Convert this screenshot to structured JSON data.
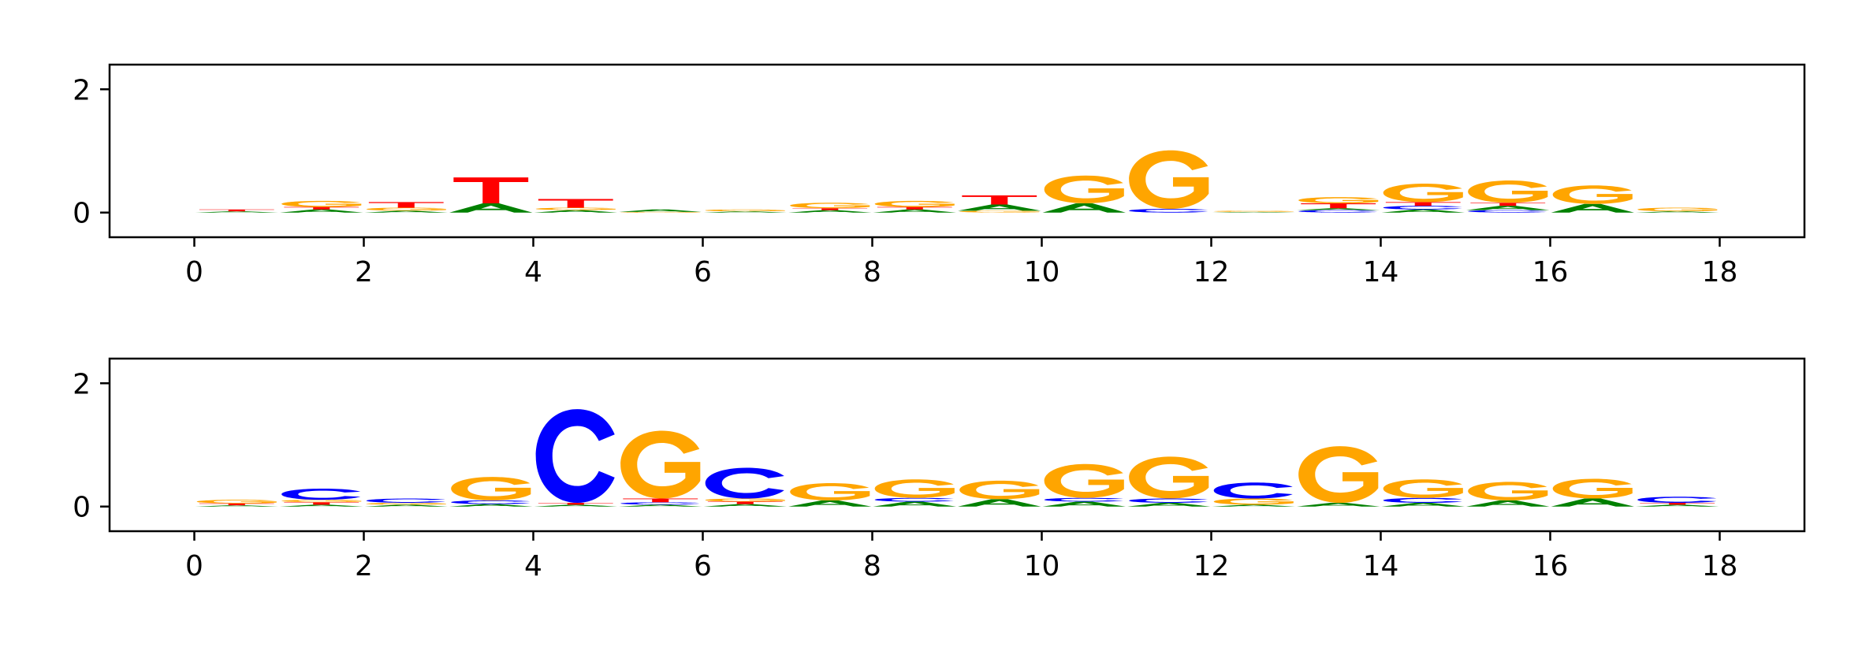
{
  "colors": {
    "A": "#008000",
    "C": "#0000ff",
    "G": "#ffa500",
    "T": "#ff0000",
    "axis": "#000000"
  },
  "chart_data": [
    {
      "type": "sequence-logo",
      "title": "",
      "xlabel": "",
      "ylabel": "",
      "xlim": [
        -1,
        19
      ],
      "ylim": [
        -0.4,
        2.4
      ],
      "xticks": [
        0,
        2,
        4,
        6,
        8,
        10,
        12,
        14,
        16,
        18
      ],
      "yticks": [
        0,
        2
      ],
      "columns": [
        {
          "pos": 0,
          "letters": [
            [
              "A",
              0.02
            ],
            [
              "T",
              0.03
            ]
          ]
        },
        {
          "pos": 1,
          "letters": [
            [
              "A",
              0.05
            ],
            [
              "T",
              0.04
            ],
            [
              "G",
              0.1
            ]
          ]
        },
        {
          "pos": 2,
          "letters": [
            [
              "A",
              0.03
            ],
            [
              "G",
              0.05
            ],
            [
              "T",
              0.09
            ]
          ]
        },
        {
          "pos": 3,
          "letters": [
            [
              "A",
              0.15
            ],
            [
              "T",
              0.42
            ]
          ]
        },
        {
          "pos": 4,
          "letters": [
            [
              "A",
              0.04
            ],
            [
              "G",
              0.04
            ],
            [
              "T",
              0.14
            ]
          ]
        },
        {
          "pos": 5,
          "letters": [
            [
              "G",
              0.01
            ],
            [
              "A",
              0.04
            ]
          ]
        },
        {
          "pos": 6,
          "letters": [
            [
              "A",
              0.02
            ],
            [
              "G",
              0.03
            ]
          ]
        },
        {
          "pos": 7,
          "letters": [
            [
              "A",
              0.04
            ],
            [
              "T",
              0.03
            ],
            [
              "G",
              0.09
            ]
          ]
        },
        {
          "pos": 8,
          "letters": [
            [
              "A",
              0.05
            ],
            [
              "T",
              0.04
            ],
            [
              "G",
              0.1
            ]
          ]
        },
        {
          "pos": 9,
          "letters": [
            [
              "G",
              0.03
            ],
            [
              "A",
              0.1
            ],
            [
              "T",
              0.15
            ]
          ]
        },
        {
          "pos": 10,
          "letters": [
            [
              "A",
              0.15
            ],
            [
              "G",
              0.45
            ]
          ]
        },
        {
          "pos": 11,
          "letters": [
            [
              "C",
              0.06
            ],
            [
              "G",
              0.95
            ]
          ]
        },
        {
          "pos": 12,
          "letters": [
            [
              "A",
              0.01
            ],
            [
              "G",
              0.02
            ]
          ]
        },
        {
          "pos": 13,
          "letters": [
            [
              "C",
              0.04
            ],
            [
              "A",
              0.03
            ],
            [
              "T",
              0.08
            ],
            [
              "G",
              0.1
            ]
          ]
        },
        {
          "pos": 14,
          "letters": [
            [
              "A",
              0.05
            ],
            [
              "C",
              0.06
            ],
            [
              "T",
              0.06
            ],
            [
              "G",
              0.3
            ]
          ]
        },
        {
          "pos": 15,
          "letters": [
            [
              "C",
              0.04
            ],
            [
              "A",
              0.07
            ],
            [
              "T",
              0.05
            ],
            [
              "G",
              0.36
            ]
          ]
        },
        {
          "pos": 16,
          "letters": [
            [
              "A",
              0.14
            ],
            [
              "G",
              0.3
            ]
          ]
        },
        {
          "pos": 17,
          "letters": [
            [
              "A",
              0.02
            ],
            [
              "G",
              0.06
            ]
          ]
        }
      ]
    },
    {
      "type": "sequence-logo",
      "title": "",
      "xlabel": "",
      "ylabel": "",
      "xlim": [
        -1,
        19
      ],
      "ylim": [
        -0.4,
        2.4
      ],
      "xticks": [
        0,
        2,
        4,
        6,
        8,
        10,
        12,
        14,
        16,
        18
      ],
      "yticks": [
        0,
        2
      ],
      "columns": [
        {
          "pos": 0,
          "letters": [
            [
              "A",
              0.02
            ],
            [
              "T",
              0.03
            ],
            [
              "G",
              0.06
            ]
          ]
        },
        {
          "pos": 1,
          "letters": [
            [
              "A",
              0.03
            ],
            [
              "T",
              0.04
            ],
            [
              "G",
              0.04
            ],
            [
              "C",
              0.18
            ]
          ]
        },
        {
          "pos": 2,
          "letters": [
            [
              "A",
              0.03
            ],
            [
              "G",
              0.03
            ],
            [
              "C",
              0.07
            ]
          ]
        },
        {
          "pos": 3,
          "letters": [
            [
              "A",
              0.04
            ],
            [
              "C",
              0.06
            ],
            [
              "G",
              0.38
            ]
          ]
        },
        {
          "pos": 4,
          "letters": [
            [
              "A",
              0.03
            ],
            [
              "T",
              0.03
            ],
            [
              "C",
              1.52
            ]
          ]
        },
        {
          "pos": 5,
          "letters": [
            [
              "A",
              0.03
            ],
            [
              "C",
              0.04
            ],
            [
              "T",
              0.06
            ],
            [
              "G",
              1.1
            ]
          ]
        },
        {
          "pos": 6,
          "letters": [
            [
              "A",
              0.04
            ],
            [
              "T",
              0.04
            ],
            [
              "G",
              0.05
            ],
            [
              "C",
              0.5
            ]
          ]
        },
        {
          "pos": 7,
          "letters": [
            [
              "A",
              0.1
            ],
            [
              "G",
              0.28
            ]
          ]
        },
        {
          "pos": 8,
          "letters": [
            [
              "A",
              0.08
            ],
            [
              "C",
              0.06
            ],
            [
              "G",
              0.3
            ]
          ]
        },
        {
          "pos": 9,
          "letters": [
            [
              "A",
              0.12
            ],
            [
              "G",
              0.3
            ]
          ]
        },
        {
          "pos": 10,
          "letters": [
            [
              "A",
              0.08
            ],
            [
              "C",
              0.06
            ],
            [
              "G",
              0.55
            ]
          ]
        },
        {
          "pos": 11,
          "letters": [
            [
              "A",
              0.06
            ],
            [
              "C",
              0.07
            ],
            [
              "G",
              0.68
            ]
          ]
        },
        {
          "pos": 12,
          "letters": [
            [
              "A",
              0.03
            ],
            [
              "G",
              0.1
            ],
            [
              "C",
              0.26
            ]
          ]
        },
        {
          "pos": 13,
          "letters": [
            [
              "A",
              0.06
            ],
            [
              "G",
              0.92
            ]
          ]
        },
        {
          "pos": 14,
          "letters": [
            [
              "A",
              0.06
            ],
            [
              "C",
              0.08
            ],
            [
              "G",
              0.3
            ]
          ]
        },
        {
          "pos": 15,
          "letters": [
            [
              "A",
              0.1
            ],
            [
              "G",
              0.3
            ]
          ]
        },
        {
          "pos": 16,
          "letters": [
            [
              "A",
              0.13
            ],
            [
              "G",
              0.32
            ]
          ]
        },
        {
          "pos": 17,
          "letters": [
            [
              "A",
              0.03
            ],
            [
              "T",
              0.03
            ],
            [
              "C",
              0.1
            ]
          ]
        }
      ]
    }
  ]
}
